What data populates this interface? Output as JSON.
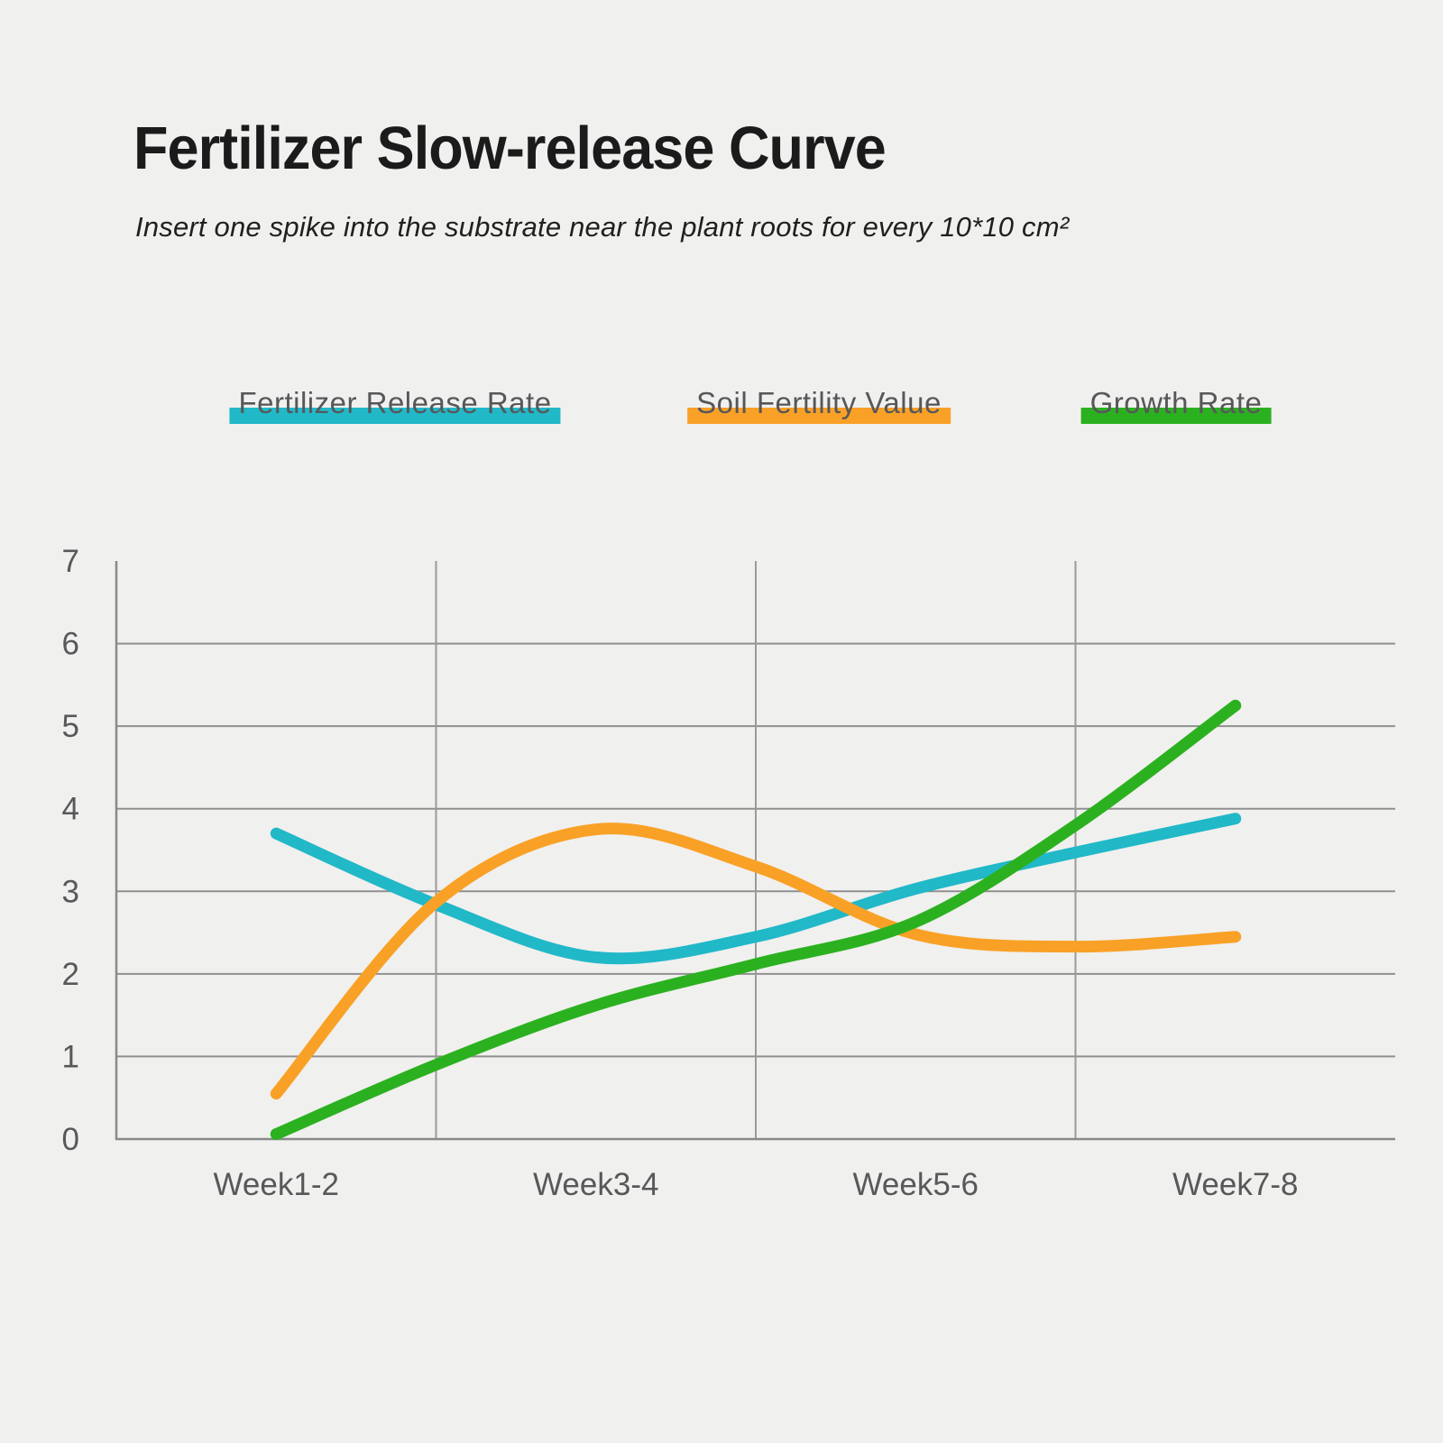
{
  "page": {
    "background_color": "#f0f0ee"
  },
  "header": {
    "title": "Fertilizer Slow-release Curve",
    "subtitle": "Insert one spike into the substrate near the plant roots for every 10*10 cm²"
  },
  "chart_data": {
    "type": "line",
    "title": "Fertilizer Slow-release Curve",
    "categories": [
      "Week1-2",
      "Week3-4",
      "Week5-6",
      "Week7-8"
    ],
    "series": [
      {
        "name": "Fertilizer Release Rate",
        "color": "#21b8c8",
        "values": [
          3.7,
          2.2,
          3.0,
          3.9
        ],
        "samples": [
          [
            0,
            3.7
          ],
          [
            0.5,
            2.84
          ],
          [
            1,
            2.2
          ],
          [
            1.5,
            2.45
          ],
          [
            2,
            3.03
          ],
          [
            2.5,
            3.47
          ],
          [
            3,
            3.88
          ]
        ]
      },
      {
        "name": "Soil Fertility Value",
        "color": "#f9a126",
        "values": [
          0.55,
          3.75,
          2.5,
          2.45
        ],
        "samples": [
          [
            0,
            0.55
          ],
          [
            0.5,
            2.87
          ],
          [
            1,
            3.75
          ],
          [
            1.5,
            3.3
          ],
          [
            2,
            2.48
          ],
          [
            2.5,
            2.33
          ],
          [
            3,
            2.45
          ]
        ]
      },
      {
        "name": "Growth Rate",
        "color": "#2bb120",
        "values": [
          0.05,
          1.6,
          2.6,
          5.25
        ],
        "samples": [
          [
            0,
            0.06
          ],
          [
            0.5,
            0.9
          ],
          [
            1,
            1.62
          ],
          [
            1.5,
            2.12
          ],
          [
            2,
            2.63
          ],
          [
            2.5,
            3.8
          ],
          [
            3,
            5.25
          ]
        ]
      }
    ],
    "xlabel": "",
    "ylabel": "",
    "ylim": [
      0,
      7
    ],
    "y_ticks": [
      0,
      1,
      2,
      3,
      4,
      5,
      6,
      7
    ],
    "grid": true,
    "legend_position": "top",
    "line_style": {
      "width": 13,
      "cap": "round",
      "smoothing": "catmull-rom"
    },
    "axis_color": "#8a8a8a",
    "grid_color": "#909090",
    "vgrid_color": "#9a9a9a",
    "tick_label_color": "#58585a"
  }
}
